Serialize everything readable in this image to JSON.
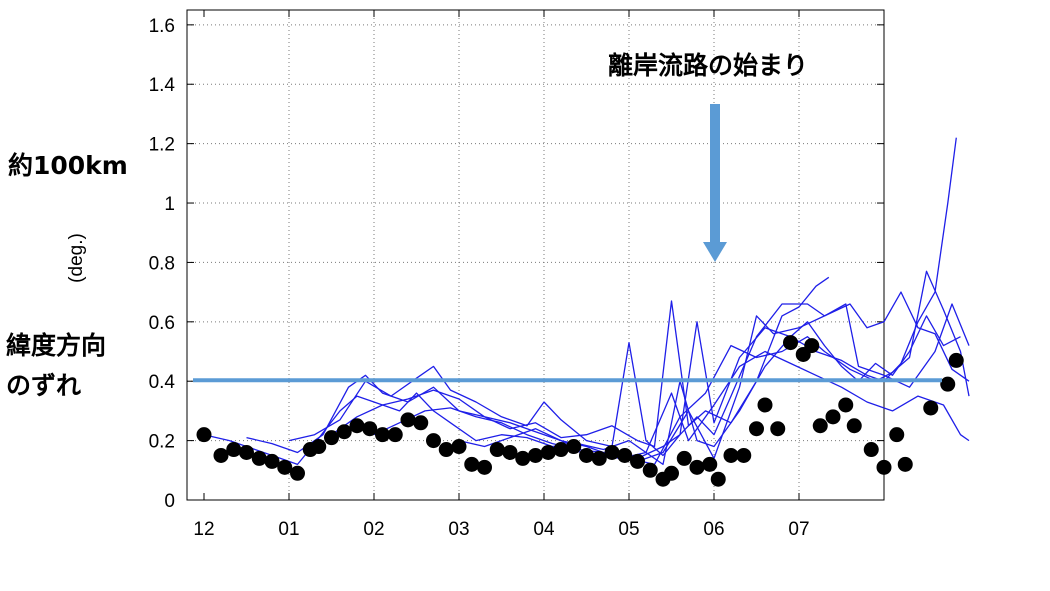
{
  "chart_data": {
    "type": "line",
    "ylabel": "(deg.)",
    "ylim": [
      0,
      1.65
    ],
    "y_ticks": [
      "0",
      "0.2",
      "0.4",
      "0.6",
      "0.8",
      "1",
      "1.2",
      "1.4",
      "1.6"
    ],
    "x_ticks": [
      "12",
      "01",
      "02",
      "03",
      "04",
      "05",
      "06",
      "07"
    ],
    "grid": "dotted",
    "reference_line": {
      "y": 0.4,
      "color": "#5b9bd5"
    },
    "annotations": {
      "arrow_label": "離岸流路の始まり",
      "left_top": "約100km",
      "left_bottom_line1": "緯度方向",
      "left_bottom_line2": "のずれ"
    },
    "series": [
      {
        "color": "#000000",
        "marker": "dot",
        "points": [
          [
            0.0,
            0.22
          ],
          [
            0.2,
            0.15
          ],
          [
            0.35,
            0.17
          ],
          [
            0.5,
            0.16
          ],
          [
            0.65,
            0.14
          ],
          [
            0.8,
            0.13
          ],
          [
            0.95,
            0.11
          ],
          [
            1.1,
            0.09
          ],
          [
            1.25,
            0.17
          ],
          [
            1.35,
            0.18
          ],
          [
            1.5,
            0.21
          ],
          [
            1.65,
            0.23
          ],
          [
            1.8,
            0.25
          ],
          [
            1.95,
            0.24
          ],
          [
            2.1,
            0.22
          ],
          [
            2.25,
            0.22
          ],
          [
            2.4,
            0.27
          ],
          [
            2.55,
            0.26
          ],
          [
            2.7,
            0.2
          ],
          [
            2.85,
            0.17
          ],
          [
            3.0,
            0.18
          ],
          [
            3.15,
            0.12
          ],
          [
            3.3,
            0.11
          ],
          [
            3.45,
            0.17
          ],
          [
            3.6,
            0.16
          ],
          [
            3.75,
            0.14
          ],
          [
            3.9,
            0.15
          ],
          [
            4.05,
            0.16
          ],
          [
            4.2,
            0.17
          ],
          [
            4.35,
            0.18
          ],
          [
            4.5,
            0.15
          ],
          [
            4.65,
            0.14
          ],
          [
            4.8,
            0.16
          ],
          [
            4.95,
            0.15
          ],
          [
            5.1,
            0.13
          ],
          [
            5.25,
            0.1
          ],
          [
            5.4,
            0.07
          ],
          [
            5.5,
            0.09
          ],
          [
            5.65,
            0.14
          ],
          [
            5.8,
            0.11
          ],
          [
            5.95,
            0.12
          ],
          [
            6.05,
            0.07
          ],
          [
            6.2,
            0.15
          ],
          [
            6.35,
            0.15
          ],
          [
            6.5,
            0.24
          ],
          [
            6.6,
            0.32
          ],
          [
            6.75,
            0.24
          ],
          [
            6.9,
            0.53
          ],
          [
            7.05,
            0.49
          ],
          [
            7.15,
            0.52
          ],
          [
            7.25,
            0.25
          ],
          [
            7.4,
            0.28
          ],
          [
            7.55,
            0.32
          ],
          [
            7.65,
            0.25
          ],
          [
            7.85,
            0.17
          ],
          [
            8.0,
            0.11
          ],
          [
            8.15,
            0.22
          ],
          [
            8.25,
            0.12
          ],
          [
            8.55,
            0.31
          ],
          [
            8.75,
            0.39
          ],
          [
            8.85,
            0.47
          ]
        ]
      },
      {
        "color": "#1f1fe8",
        "marker": "none",
        "points": [
          [
            0.0,
            0.22
          ],
          [
            0.3,
            0.2
          ],
          [
            0.6,
            0.17
          ],
          [
            0.9,
            0.14
          ],
          [
            1.1,
            0.12
          ],
          [
            1.3,
            0.19
          ],
          [
            1.6,
            0.3
          ],
          [
            1.8,
            0.35
          ],
          [
            2.0,
            0.33
          ],
          [
            2.3,
            0.3
          ],
          [
            2.5,
            0.36
          ],
          [
            2.7,
            0.3
          ],
          [
            2.9,
            0.26
          ],
          [
            3.2,
            0.2
          ],
          [
            3.5,
            0.22
          ],
          [
            3.8,
            0.21
          ],
          [
            4.1,
            0.18
          ],
          [
            4.4,
            0.19
          ],
          [
            4.7,
            0.17
          ],
          [
            5.0,
            0.2
          ],
          [
            5.2,
            0.16
          ],
          [
            5.4,
            0.12
          ],
          [
            5.6,
            0.4
          ],
          [
            5.8,
            0.2
          ],
          [
            6.0,
            0.18
          ],
          [
            6.3,
            0.3
          ],
          [
            6.6,
            0.45
          ],
          [
            6.9,
            0.55
          ],
          [
            7.1,
            0.6
          ],
          [
            7.3,
            0.52
          ],
          [
            7.5,
            0.45
          ],
          [
            7.7,
            0.4
          ],
          [
            7.9,
            0.46
          ],
          [
            8.1,
            0.42
          ],
          [
            8.3,
            0.5
          ],
          [
            8.5,
            0.62
          ],
          [
            8.7,
            0.52
          ],
          [
            8.9,
            0.55
          ]
        ]
      },
      {
        "color": "#1f1fe8",
        "marker": "none",
        "points": [
          [
            0.5,
            0.21
          ],
          [
            0.8,
            0.19
          ],
          [
            1.1,
            0.16
          ],
          [
            1.4,
            0.22
          ],
          [
            1.7,
            0.38
          ],
          [
            1.9,
            0.42
          ],
          [
            2.1,
            0.36
          ],
          [
            2.4,
            0.33
          ],
          [
            2.7,
            0.38
          ],
          [
            3.0,
            0.3
          ],
          [
            3.3,
            0.28
          ],
          [
            3.6,
            0.24
          ],
          [
            3.9,
            0.26
          ],
          [
            4.2,
            0.21
          ],
          [
            4.5,
            0.22
          ],
          [
            4.8,
            0.25
          ],
          [
            5.1,
            0.2
          ],
          [
            5.3,
            0.18
          ],
          [
            5.5,
            0.67
          ],
          [
            5.7,
            0.25
          ],
          [
            5.9,
            0.3
          ],
          [
            6.2,
            0.26
          ],
          [
            6.5,
            0.4
          ],
          [
            6.8,
            0.62
          ],
          [
            7.0,
            0.65
          ],
          [
            7.2,
            0.72
          ],
          [
            7.35,
            0.75
          ]
        ]
      },
      {
        "color": "#1f1fe8",
        "marker": "none",
        "points": [
          [
            1.0,
            0.2
          ],
          [
            1.3,
            0.22
          ],
          [
            1.6,
            0.27
          ],
          [
            1.9,
            0.4
          ],
          [
            2.2,
            0.35
          ],
          [
            2.5,
            0.41
          ],
          [
            2.7,
            0.45
          ],
          [
            2.9,
            0.37
          ],
          [
            3.2,
            0.33
          ],
          [
            3.5,
            0.28
          ],
          [
            3.8,
            0.25
          ],
          [
            4.0,
            0.33
          ],
          [
            4.2,
            0.27
          ],
          [
            4.5,
            0.2
          ],
          [
            4.8,
            0.18
          ],
          [
            5.0,
            0.53
          ],
          [
            5.2,
            0.2
          ],
          [
            5.4,
            0.15
          ],
          [
            5.6,
            0.22
          ],
          [
            5.8,
            0.28
          ],
          [
            6.0,
            0.22
          ],
          [
            6.2,
            0.35
          ],
          [
            6.5,
            0.55
          ],
          [
            6.8,
            0.66
          ],
          [
            7.1,
            0.66
          ],
          [
            7.3,
            0.62
          ],
          [
            7.6,
            0.66
          ],
          [
            7.8,
            0.58
          ],
          [
            8.0,
            0.6
          ],
          [
            8.2,
            0.7
          ],
          [
            8.4,
            0.58
          ],
          [
            8.6,
            0.56
          ],
          [
            8.8,
            0.44
          ],
          [
            9.0,
            0.4
          ]
        ]
      },
      {
        "color": "#1f1fe8",
        "marker": "none",
        "points": [
          [
            1.5,
            0.22
          ],
          [
            1.8,
            0.28
          ],
          [
            2.1,
            0.32
          ],
          [
            2.4,
            0.34
          ],
          [
            2.7,
            0.37
          ],
          [
            3.0,
            0.34
          ],
          [
            3.3,
            0.28
          ],
          [
            3.6,
            0.26
          ],
          [
            3.9,
            0.23
          ],
          [
            4.2,
            0.2
          ],
          [
            4.5,
            0.16
          ],
          [
            4.8,
            0.15
          ],
          [
            5.1,
            0.14
          ],
          [
            5.4,
            0.18
          ],
          [
            5.6,
            0.22
          ],
          [
            5.8,
            0.6
          ],
          [
            6.0,
            0.26
          ],
          [
            6.3,
            0.48
          ],
          [
            6.6,
            0.58
          ],
          [
            6.9,
            0.55
          ],
          [
            7.2,
            0.5
          ],
          [
            7.5,
            0.47
          ],
          [
            7.8,
            0.42
          ],
          [
            8.0,
            0.4
          ],
          [
            8.2,
            0.46
          ],
          [
            8.4,
            0.6
          ],
          [
            8.6,
            0.7
          ],
          [
            8.75,
            1.0
          ],
          [
            8.85,
            1.22
          ]
        ]
      },
      {
        "color": "#1f1fe8",
        "marker": "none",
        "points": [
          [
            2.0,
            0.22
          ],
          [
            2.3,
            0.26
          ],
          [
            2.6,
            0.3
          ],
          [
            2.9,
            0.31
          ],
          [
            3.2,
            0.28
          ],
          [
            3.5,
            0.26
          ],
          [
            3.8,
            0.22
          ],
          [
            4.1,
            0.19
          ],
          [
            4.4,
            0.17
          ],
          [
            4.7,
            0.16
          ],
          [
            5.0,
            0.14
          ],
          [
            5.3,
            0.12
          ],
          [
            5.6,
            0.28
          ],
          [
            5.9,
            0.36
          ],
          [
            6.2,
            0.52
          ],
          [
            6.5,
            0.48
          ],
          [
            6.8,
            0.5
          ],
          [
            7.1,
            0.55
          ],
          [
            7.3,
            0.5
          ],
          [
            7.6,
            0.44
          ],
          [
            7.9,
            0.4
          ],
          [
            8.1,
            0.43
          ],
          [
            8.3,
            0.48
          ],
          [
            8.5,
            0.77
          ],
          [
            8.7,
            0.64
          ],
          [
            8.9,
            0.5
          ],
          [
            9.0,
            0.35
          ]
        ]
      },
      {
        "color": "#1f1fe8",
        "marker": "none",
        "points": [
          [
            3.0,
            0.2
          ],
          [
            3.3,
            0.18
          ],
          [
            3.6,
            0.21
          ],
          [
            3.9,
            0.24
          ],
          [
            4.2,
            0.2
          ],
          [
            4.5,
            0.18
          ],
          [
            4.8,
            0.15
          ],
          [
            5.1,
            0.13
          ],
          [
            5.4,
            0.16
          ],
          [
            5.7,
            0.3
          ],
          [
            6.0,
            0.14
          ],
          [
            6.3,
            0.38
          ],
          [
            6.5,
            0.62
          ],
          [
            6.7,
            0.56
          ],
          [
            7.0,
            0.58
          ],
          [
            7.3,
            0.62
          ],
          [
            7.55,
            0.66
          ],
          [
            7.7,
            0.45
          ],
          [
            8.0,
            0.42
          ],
          [
            8.3,
            0.38
          ],
          [
            8.6,
            0.5
          ],
          [
            8.8,
            0.66
          ],
          [
            9.0,
            0.52
          ]
        ]
      },
      {
        "color": "#1f1fe8",
        "marker": "none",
        "points": [
          [
            4.0,
            0.18
          ],
          [
            4.3,
            0.17
          ],
          [
            4.6,
            0.15
          ],
          [
            4.9,
            0.14
          ],
          [
            5.2,
            0.16
          ],
          [
            5.5,
            0.36
          ],
          [
            5.7,
            0.2
          ],
          [
            6.0,
            0.32
          ],
          [
            6.3,
            0.45
          ],
          [
            6.6,
            0.5
          ],
          [
            6.9,
            0.46
          ],
          [
            7.2,
            0.42
          ],
          [
            7.5,
            0.38
          ],
          [
            7.8,
            0.33
          ],
          [
            8.1,
            0.3
          ],
          [
            8.4,
            0.35
          ],
          [
            8.7,
            0.32
          ],
          [
            8.9,
            0.22
          ],
          [
            9.0,
            0.2
          ]
        ]
      }
    ]
  }
}
